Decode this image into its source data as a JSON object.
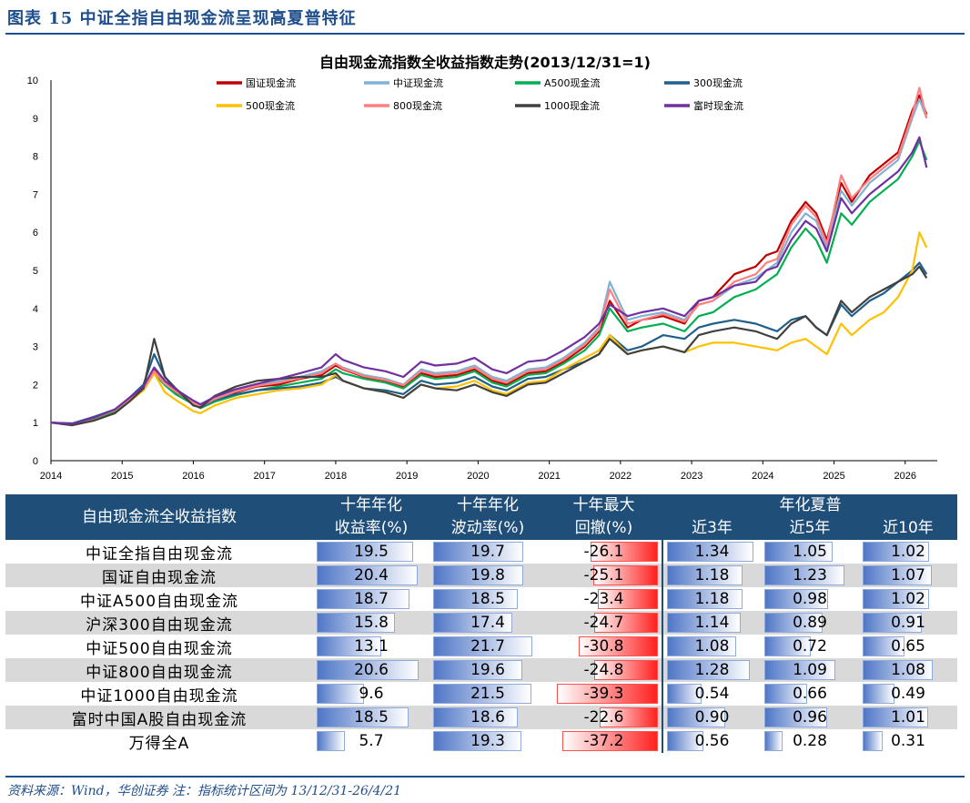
{
  "figure": {
    "title": "图表  15    中证全指自由现金流呈现高夏普特征",
    "source": "资料来源：Wind，华创证券    注：指标统计区间为 13/12/31-26/4/21"
  },
  "chart_data": {
    "type": "line",
    "title": "自由现金流指数全收益指数走势(2013/12/31=1)",
    "xlabel": "",
    "ylabel": "",
    "xlim": [
      2014,
      2026.45
    ],
    "ylim": [
      0,
      10
    ],
    "x_ticks": [
      "2014",
      "2015",
      "2016",
      "2017",
      "2018",
      "2019",
      "2020",
      "2021",
      "2022",
      "2023",
      "2024",
      "2025",
      "2026"
    ],
    "y_ticks": [
      "0",
      "1",
      "2",
      "3",
      "4",
      "5",
      "6",
      "7",
      "8",
      "9",
      "10"
    ],
    "grid": false,
    "legend_position": "top",
    "x": [
      2014.0,
      2014.3,
      2014.6,
      2014.9,
      2015.1,
      2015.3,
      2015.45,
      2015.6,
      2015.75,
      2016.0,
      2016.1,
      2016.3,
      2016.6,
      2016.9,
      2017.2,
      2017.5,
      2017.8,
      2018.0,
      2018.1,
      2018.4,
      2018.7,
      2018.95,
      2019.2,
      2019.4,
      2019.7,
      2019.95,
      2020.2,
      2020.4,
      2020.7,
      2020.95,
      2021.2,
      2021.5,
      2021.7,
      2021.85,
      2022.1,
      2022.3,
      2022.6,
      2022.9,
      2023.1,
      2023.3,
      2023.6,
      2023.9,
      2024.05,
      2024.2,
      2024.4,
      2024.6,
      2024.75,
      2024.9,
      2025.1,
      2025.25,
      2025.5,
      2025.7,
      2025.9,
      2026.1,
      2026.2,
      2026.3
    ],
    "series": [
      {
        "name": "国证现金流",
        "color": "#c00000",
        "values": [
          1,
          0.95,
          1.1,
          1.3,
          1.6,
          1.9,
          2.4,
          2.0,
          1.8,
          1.5,
          1.4,
          1.6,
          1.8,
          1.95,
          2.0,
          2.15,
          2.25,
          2.5,
          2.4,
          2.2,
          2.1,
          1.95,
          2.3,
          2.2,
          2.25,
          2.4,
          2.1,
          2.0,
          2.3,
          2.35,
          2.6,
          3.0,
          3.4,
          4.2,
          3.5,
          3.7,
          3.8,
          3.6,
          4.2,
          4.3,
          4.9,
          5.1,
          5.4,
          5.5,
          6.3,
          6.8,
          6.5,
          5.8,
          7.3,
          6.8,
          7.5,
          7.8,
          8.1,
          9.2,
          9.6,
          9.1
        ]
      },
      {
        "name": "中证现金流",
        "color": "#7fb3d5",
        "values": [
          1,
          0.97,
          1.12,
          1.32,
          1.62,
          1.9,
          2.35,
          2.05,
          1.85,
          1.55,
          1.45,
          1.65,
          1.85,
          2.0,
          2.1,
          2.2,
          2.35,
          2.55,
          2.45,
          2.25,
          2.15,
          2.0,
          2.4,
          2.3,
          2.35,
          2.5,
          2.2,
          2.1,
          2.4,
          2.45,
          2.7,
          3.1,
          3.5,
          4.7,
          3.7,
          3.8,
          3.9,
          3.7,
          4.1,
          4.2,
          4.6,
          4.8,
          5.0,
          5.2,
          6.0,
          6.5,
          6.3,
          5.6,
          7.1,
          6.7,
          7.3,
          7.6,
          7.9,
          9.0,
          9.5,
          9.0
        ]
      },
      {
        "name": "A500现金流",
        "color": "#00b050",
        "values": [
          1,
          0.96,
          1.1,
          1.3,
          1.58,
          1.85,
          2.3,
          1.98,
          1.75,
          1.48,
          1.38,
          1.55,
          1.72,
          1.85,
          1.95,
          2.05,
          2.15,
          2.4,
          2.3,
          2.15,
          2.05,
          1.9,
          2.25,
          2.15,
          2.2,
          2.35,
          2.05,
          1.95,
          2.25,
          2.3,
          2.55,
          2.9,
          3.3,
          4.0,
          3.4,
          3.5,
          3.6,
          3.4,
          3.8,
          3.9,
          4.3,
          4.5,
          4.7,
          4.9,
          5.6,
          6.1,
          5.8,
          5.2,
          6.5,
          6.2,
          6.8,
          7.1,
          7.4,
          8.0,
          8.4,
          7.9
        ]
      },
      {
        "name": "300现金流",
        "color": "#1f5f8b",
        "values": [
          1,
          0.98,
          1.15,
          1.35,
          1.65,
          2.0,
          2.8,
          2.2,
          1.9,
          1.5,
          1.4,
          1.6,
          1.75,
          1.85,
          1.9,
          1.95,
          2.05,
          2.2,
          2.1,
          1.9,
          1.85,
          1.75,
          2.1,
          2.0,
          2.05,
          2.2,
          1.95,
          1.85,
          2.15,
          2.2,
          2.4,
          2.6,
          2.8,
          3.3,
          2.9,
          3.0,
          3.3,
          3.2,
          3.5,
          3.6,
          3.7,
          3.6,
          3.5,
          3.4,
          3.7,
          3.8,
          3.5,
          3.3,
          4.1,
          3.8,
          4.2,
          4.4,
          4.7,
          5.0,
          5.2,
          4.9
        ]
      },
      {
        "name": "500现金流",
        "color": "#ffc000",
        "values": [
          1,
          0.94,
          1.05,
          1.25,
          1.55,
          1.85,
          2.3,
          1.8,
          1.6,
          1.3,
          1.25,
          1.45,
          1.65,
          1.75,
          1.85,
          1.9,
          2.0,
          2.25,
          2.1,
          1.9,
          1.8,
          1.65,
          2.0,
          1.9,
          1.95,
          2.1,
          1.85,
          1.75,
          2.05,
          2.1,
          2.4,
          2.7,
          2.9,
          3.3,
          2.8,
          2.9,
          3.0,
          2.85,
          3.0,
          3.1,
          3.1,
          3.0,
          2.95,
          2.9,
          3.1,
          3.2,
          3.0,
          2.8,
          3.6,
          3.3,
          3.7,
          3.9,
          4.3,
          5.0,
          6.0,
          5.6
        ]
      },
      {
        "name": "800现金流",
        "color": "#ff8080",
        "values": [
          1,
          0.96,
          1.12,
          1.33,
          1.62,
          1.9,
          2.35,
          2.02,
          1.82,
          1.52,
          1.42,
          1.62,
          1.82,
          1.97,
          2.05,
          2.17,
          2.3,
          2.55,
          2.42,
          2.22,
          2.12,
          1.98,
          2.35,
          2.25,
          2.3,
          2.45,
          2.15,
          2.05,
          2.35,
          2.4,
          2.65,
          3.05,
          3.45,
          4.5,
          3.6,
          3.7,
          3.85,
          3.65,
          4.1,
          4.2,
          4.7,
          4.9,
          5.2,
          5.3,
          6.2,
          6.7,
          6.4,
          5.7,
          7.5,
          6.9,
          7.4,
          7.7,
          8.0,
          9.1,
          9.8,
          9.0
        ]
      },
      {
        "name": "1000现金流",
        "color": "#404040",
        "values": [
          1,
          0.93,
          1.05,
          1.25,
          1.55,
          1.9,
          3.2,
          2.2,
          1.9,
          1.45,
          1.4,
          1.7,
          1.95,
          2.1,
          2.15,
          2.2,
          2.2,
          2.3,
          2.1,
          1.9,
          1.8,
          1.65,
          2.0,
          1.9,
          1.85,
          2.0,
          1.8,
          1.7,
          2.0,
          2.05,
          2.3,
          2.6,
          2.8,
          3.2,
          2.8,
          2.9,
          3.0,
          2.85,
          3.3,
          3.4,
          3.5,
          3.4,
          3.3,
          3.2,
          3.6,
          3.8,
          3.5,
          3.3,
          4.2,
          3.9,
          4.3,
          4.5,
          4.7,
          4.9,
          5.1,
          4.8
        ]
      },
      {
        "name": "富时现金流",
        "color": "#7030a0",
        "values": [
          1,
          0.97,
          1.13,
          1.35,
          1.65,
          1.95,
          2.45,
          2.1,
          1.88,
          1.58,
          1.48,
          1.68,
          1.88,
          2.02,
          2.15,
          2.3,
          2.45,
          2.8,
          2.65,
          2.45,
          2.35,
          2.2,
          2.6,
          2.5,
          2.55,
          2.7,
          2.4,
          2.3,
          2.6,
          2.65,
          2.9,
          3.25,
          3.6,
          4.1,
          3.8,
          3.9,
          4.0,
          3.8,
          4.2,
          4.3,
          4.6,
          4.7,
          5.0,
          5.1,
          5.8,
          6.3,
          6.1,
          5.5,
          6.9,
          6.5,
          7.0,
          7.3,
          7.6,
          8.1,
          8.5,
          7.7
        ]
      }
    ]
  },
  "table": {
    "headers": {
      "name": "自由现金流全收益指数",
      "ret1": "十年年化",
      "ret2": "收益率(%)",
      "vol1": "十年年化",
      "vol2": "波动率(%)",
      "dd1": "十年最大",
      "dd2": "回撤(%)",
      "sharpe": "年化夏普",
      "s3": "近3年",
      "s5": "近5年",
      "s10": "近10年"
    },
    "rows": [
      {
        "name": "中证全指自由现金流",
        "ret": "19.5",
        "vol": "19.7",
        "dd": "-26.1",
        "s3": "1.34",
        "s5": "1.05",
        "s10": "1.02",
        "retv": 19.5,
        "volv": 19.7,
        "ddv": 26.1,
        "s3v": 1.34,
        "s5v": 1.05,
        "s10v": 1.02
      },
      {
        "name": "国证自由现金流",
        "ret": "20.4",
        "vol": "19.8",
        "dd": "-25.1",
        "s3": "1.18",
        "s5": "1.23",
        "s10": "1.07",
        "retv": 20.4,
        "volv": 19.8,
        "ddv": 25.1,
        "s3v": 1.18,
        "s5v": 1.23,
        "s10v": 1.07
      },
      {
        "name": "中证A500自由现金流",
        "ret": "18.7",
        "vol": "18.5",
        "dd": "-23.4",
        "s3": "1.18",
        "s5": "0.98",
        "s10": "1.02",
        "retv": 18.7,
        "volv": 18.5,
        "ddv": 23.4,
        "s3v": 1.18,
        "s5v": 0.98,
        "s10v": 1.02
      },
      {
        "name": "沪深300自由现金流",
        "ret": "15.8",
        "vol": "17.4",
        "dd": "-24.7",
        "s3": "1.14",
        "s5": "0.89",
        "s10": "0.91",
        "retv": 15.8,
        "volv": 17.4,
        "ddv": 24.7,
        "s3v": 1.14,
        "s5v": 0.89,
        "s10v": 0.91
      },
      {
        "name": "中证500自由现金流",
        "ret": "13.1",
        "vol": "21.7",
        "dd": "-30.8",
        "s3": "1.08",
        "s5": "0.72",
        "s10": "0.65",
        "retv": 13.1,
        "volv": 21.7,
        "ddv": 30.8,
        "s3v": 1.08,
        "s5v": 0.72,
        "s10v": 0.65
      },
      {
        "name": "中证800自由现金流",
        "ret": "20.6",
        "vol": "19.6",
        "dd": "-24.8",
        "s3": "1.28",
        "s5": "1.09",
        "s10": "1.08",
        "retv": 20.6,
        "volv": 19.6,
        "ddv": 24.8,
        "s3v": 1.28,
        "s5v": 1.09,
        "s10v": 1.08
      },
      {
        "name": "中证1000自由现金流",
        "ret": "9.6",
        "vol": "21.5",
        "dd": "-39.3",
        "s3": "0.54",
        "s5": "0.66",
        "s10": "0.49",
        "retv": 9.6,
        "volv": 21.5,
        "ddv": 39.3,
        "s3v": 0.54,
        "s5v": 0.66,
        "s10v": 0.49
      },
      {
        "name": "富时中国A股自由现金流",
        "ret": "18.5",
        "vol": "18.6",
        "dd": "-22.6",
        "s3": "0.90",
        "s5": "0.96",
        "s10": "1.01",
        "retv": 18.5,
        "volv": 18.6,
        "ddv": 22.6,
        "s3v": 0.9,
        "s5v": 0.96,
        "s10v": 1.01
      },
      {
        "name": "万得全A",
        "ret": "5.7",
        "vol": "19.3",
        "dd": "-37.2",
        "s3": "0.56",
        "s5": "0.28",
        "s10": "0.31",
        "retv": 5.7,
        "volv": 19.3,
        "ddv": 37.2,
        "s3v": 0.56,
        "s5v": 0.28,
        "s10v": 0.31
      }
    ]
  }
}
